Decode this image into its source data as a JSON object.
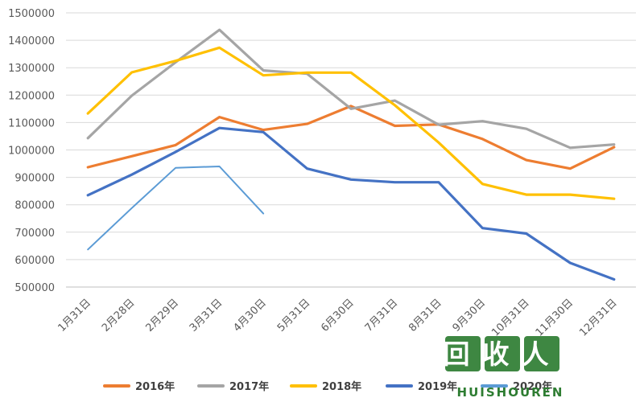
{
  "chart_data": {
    "type": "line",
    "categories": [
      "1月31日",
      "2月28日",
      "2月29日",
      "3月31日",
      "4月30日",
      "5月31日",
      "6月30日",
      "7月31日",
      "8月31日",
      "9月30日",
      "10月31日",
      "11月30日",
      "12月31日"
    ],
    "ylim": [
      500000,
      1500000
    ],
    "yticks": [
      500000,
      600000,
      700000,
      800000,
      900000,
      1000000,
      1100000,
      1200000,
      1300000,
      1400000,
      1500000
    ],
    "grid": "horizontal",
    "legend_position": "bottom",
    "series": [
      {
        "name": "2016年",
        "color": "#ED7D31",
        "values": [
          937000,
          977000,
          1018000,
          1120000,
          1073000,
          1095000,
          1160000,
          1088000,
          1093000,
          1040000,
          963000,
          932000,
          1010000
        ]
      },
      {
        "name": "2017年",
        "color": "#A5A5A5",
        "values": [
          1043000,
          1198000,
          1320000,
          1438000,
          1290000,
          1278000,
          1150000,
          1180000,
          1092000,
          1105000,
          1077000,
          1008000,
          1020000
        ]
      },
      {
        "name": "2018年",
        "color": "#FFC000",
        "values": [
          1133000,
          1283000,
          1325000,
          1373000,
          1272000,
          1282000,
          1282000,
          1163000,
          1027000,
          876000,
          837000,
          837000,
          822000
        ]
      },
      {
        "name": "2019年",
        "color": "#4472C4",
        "values": [
          835000,
          910000,
          993000,
          1080000,
          1065000,
          932000,
          892000,
          882000,
          882000,
          715000,
          695000,
          588000,
          528000
        ]
      },
      {
        "name": "2020年",
        "color": "#5B9BD5",
        "values": [
          637000,
          788000,
          935000,
          940000,
          768000,
          null,
          null,
          null,
          null,
          null,
          null,
          null,
          null
        ]
      }
    ]
  },
  "watermark": {
    "main": "回收人",
    "sub": "HUISHOUREN",
    "color": "#2E7D32"
  }
}
